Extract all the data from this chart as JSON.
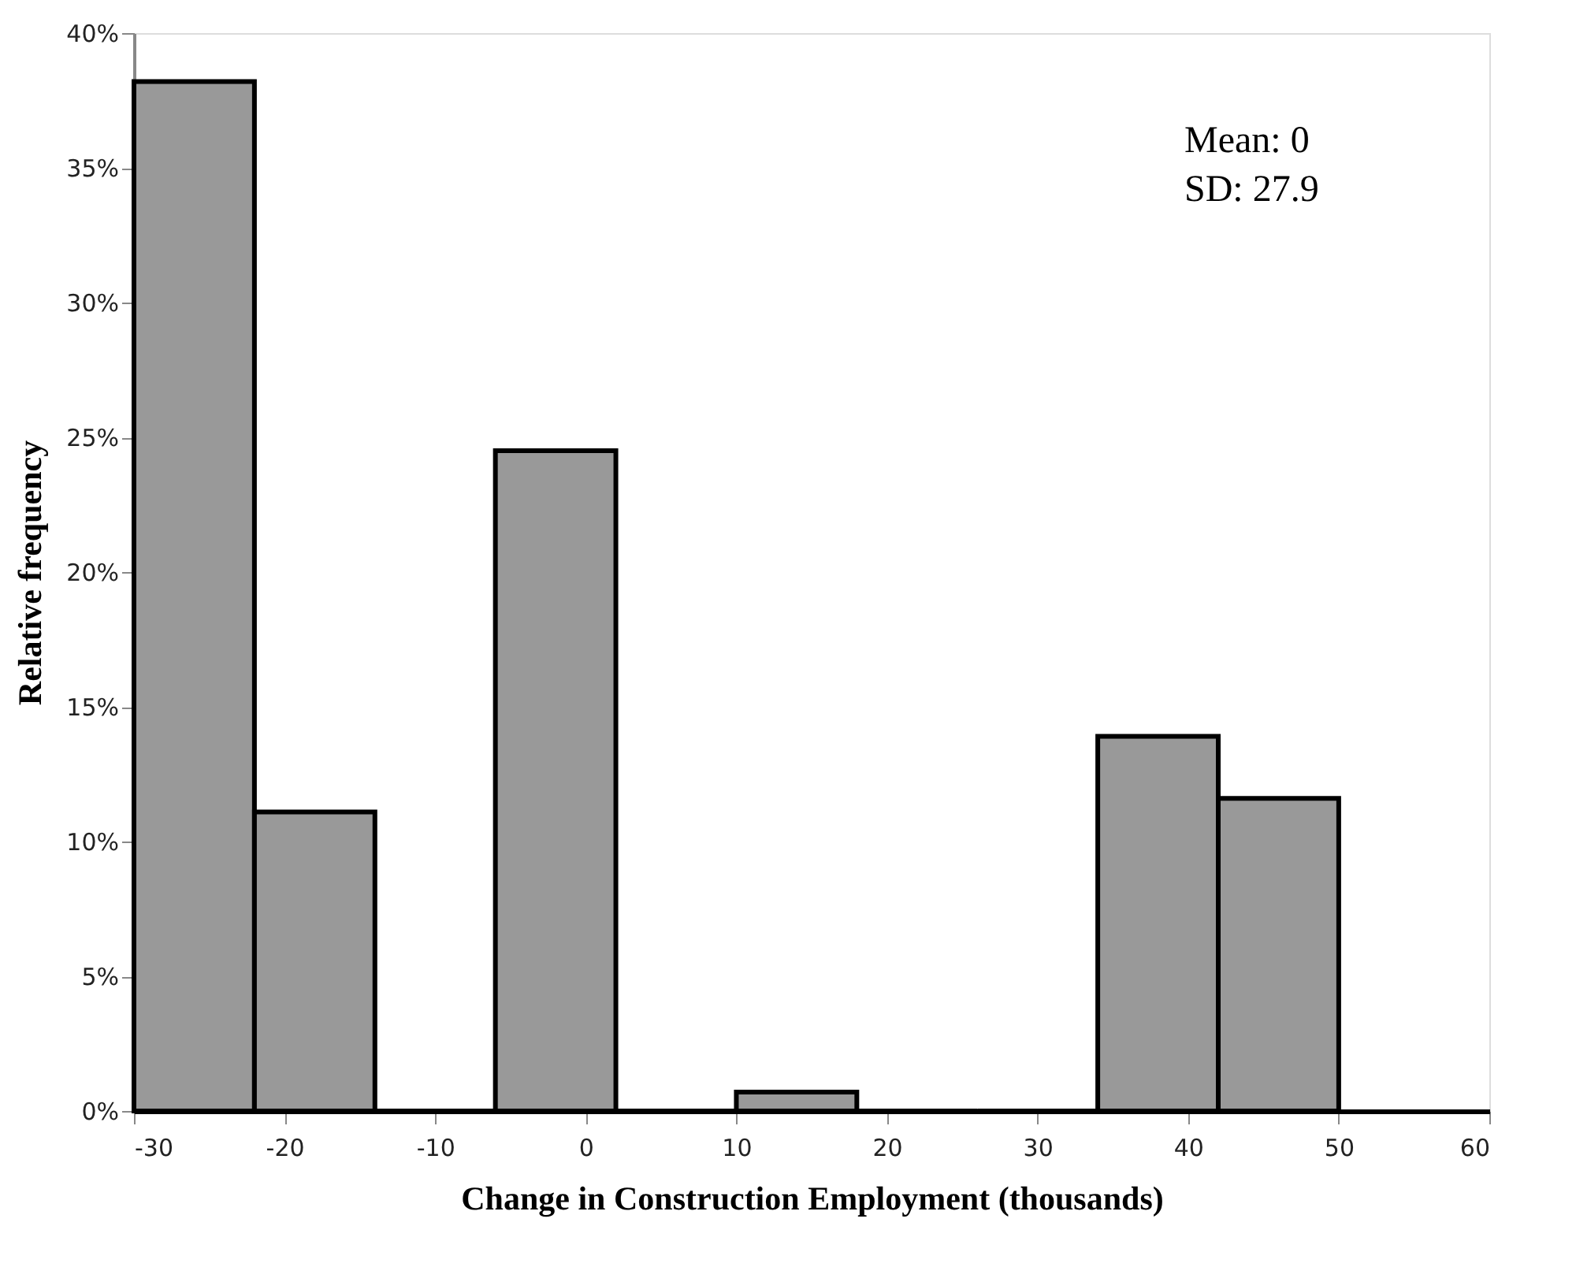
{
  "chart_data": {
    "type": "histogram",
    "xlabel": "Change in Construction Employment (thousands)",
    "ylabel": "Relative frequency",
    "bins": [
      -30,
      -22,
      -14,
      -6,
      2,
      10,
      18,
      26,
      34,
      42,
      50
    ],
    "values": [
      38.2,
      11.1,
      0,
      24.5,
      0,
      0.7,
      0,
      0,
      13.9,
      11.6
    ],
    "color": "#999999",
    "xlim": [
      -30,
      60
    ],
    "xticks": [
      -30,
      -20,
      -10,
      0,
      10,
      20,
      30,
      40,
      50,
      60
    ],
    "ylim": [
      0,
      40
    ],
    "yticks": [
      {
        "value": 0,
        "label": "0%"
      },
      {
        "value": 5,
        "label": "5%"
      },
      {
        "value": 10,
        "label": "10%"
      },
      {
        "value": 15,
        "label": "15%"
      },
      {
        "value": 20,
        "label": "20%"
      },
      {
        "value": 25,
        "label": "25%"
      },
      {
        "value": 30,
        "label": "30%"
      },
      {
        "value": 35,
        "label": "35%"
      },
      {
        "value": 40,
        "label": "40%"
      }
    ],
    "annotations": [
      "Mean: 0",
      "SD: 27.9"
    ],
    "grid": false
  }
}
